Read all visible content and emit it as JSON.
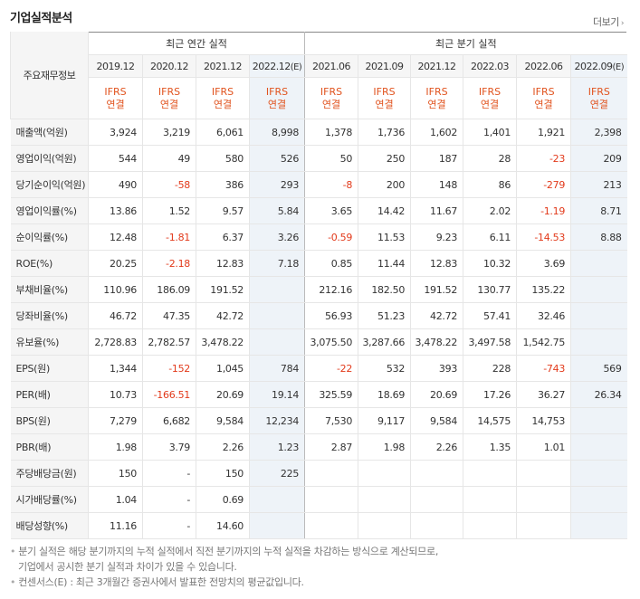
{
  "section_title": "기업실적분석",
  "more_label": "더보기",
  "header": {
    "row_label": "주요재무정보",
    "annual_group": "최근 연간 실적",
    "quarter_group": "최근 분기 실적",
    "annual_periods": [
      "2019.12",
      "2020.12",
      "2021.12",
      "2022.12"
    ],
    "quarter_periods": [
      "2021.06",
      "2021.09",
      "2021.12",
      "2022.03",
      "2022.06",
      "2022.09"
    ],
    "estimate_mark": "(E)",
    "ifrs_top": "IFRS",
    "ifrs_bottom": "연결"
  },
  "rows": [
    {
      "label": "매출액(억원)",
      "values": [
        "3,924",
        "3,219",
        "6,061",
        "8,998",
        "1,378",
        "1,736",
        "1,602",
        "1,401",
        "1,921",
        "2,398"
      ]
    },
    {
      "label": "영업이익(억원)",
      "values": [
        "544",
        "49",
        "580",
        "526",
        "50",
        "250",
        "187",
        "28",
        "-23",
        "209"
      ]
    },
    {
      "label": "당기순이익(억원)",
      "values": [
        "490",
        "-58",
        "386",
        "293",
        "-8",
        "200",
        "148",
        "86",
        "-279",
        "213"
      ]
    },
    {
      "label": "영업이익률(%)",
      "values": [
        "13.86",
        "1.52",
        "9.57",
        "5.84",
        "3.65",
        "14.42",
        "11.67",
        "2.02",
        "-1.19",
        "8.71"
      ]
    },
    {
      "label": "순이익률(%)",
      "values": [
        "12.48",
        "-1.81",
        "6.37",
        "3.26",
        "-0.59",
        "11.53",
        "9.23",
        "6.11",
        "-14.53",
        "8.88"
      ]
    },
    {
      "label": "ROE(%)",
      "values": [
        "20.25",
        "-2.18",
        "12.83",
        "7.18",
        "0.85",
        "11.44",
        "12.83",
        "10.32",
        "3.69",
        ""
      ]
    },
    {
      "label": "부채비율(%)",
      "values": [
        "110.96",
        "186.09",
        "191.52",
        "",
        "212.16",
        "182.50",
        "191.52",
        "130.77",
        "135.22",
        ""
      ]
    },
    {
      "label": "당좌비율(%)",
      "values": [
        "46.72",
        "47.35",
        "42.72",
        "",
        "56.93",
        "51.23",
        "42.72",
        "57.41",
        "32.46",
        ""
      ]
    },
    {
      "label": "유보율(%)",
      "values": [
        "2,728.83",
        "2,782.57",
        "3,478.22",
        "",
        "3,075.50",
        "3,287.66",
        "3,478.22",
        "3,497.58",
        "1,542.75",
        ""
      ]
    },
    {
      "label": "EPS(원)",
      "values": [
        "1,344",
        "-152",
        "1,045",
        "784",
        "-22",
        "532",
        "393",
        "228",
        "-743",
        "569"
      ]
    },
    {
      "label": "PER(배)",
      "values": [
        "10.73",
        "-166.51",
        "20.69",
        "19.14",
        "325.59",
        "18.69",
        "20.69",
        "17.26",
        "36.27",
        "26.34"
      ]
    },
    {
      "label": "BPS(원)",
      "values": [
        "7,279",
        "6,682",
        "9,584",
        "12,234",
        "7,530",
        "9,117",
        "9,584",
        "14,575",
        "14,753",
        ""
      ]
    },
    {
      "label": "PBR(배)",
      "values": [
        "1.98",
        "3.79",
        "2.26",
        "1.23",
        "2.87",
        "1.98",
        "2.26",
        "1.35",
        "1.01",
        ""
      ]
    },
    {
      "label": "주당배당금(원)",
      "values": [
        "150",
        "-",
        "150",
        "225",
        "",
        "",
        "",
        "",
        "",
        ""
      ]
    },
    {
      "label": "시가배당률(%)",
      "values": [
        "1.04",
        "-",
        "0.69",
        "",
        "",
        "",
        "",
        "",
        "",
        ""
      ]
    },
    {
      "label": "배당성향(%)",
      "values": [
        "11.16",
        "-",
        "14.60",
        "",
        "",
        "",
        "",
        "",
        "",
        ""
      ]
    }
  ],
  "notes": {
    "line1": "분기 실적은 해당 분기까지의 누적 실적에서 직전 분기까지의 누적 실적을 차감하는 방식으로 계산되므로,",
    "line2": "기업에서 공시한 분기 실적과 차이가 있을 수 있습니다.",
    "line3": "컨센서스(E) : 최근 3개월간 증권사에서 발표한 전망치의 평균값입니다."
  }
}
